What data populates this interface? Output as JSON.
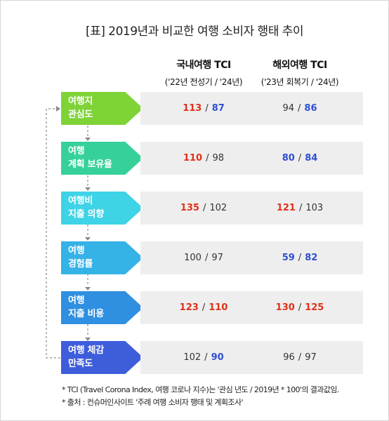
{
  "title": "[표] 2019년과 비교한 여행 소비자 행태 추이",
  "columns": [
    {
      "heading": "국내여행 TCI",
      "sub": "('22년 전성기 / '24년)"
    },
    {
      "heading": "해외여행 TCI",
      "sub": "('23년 회복기 / '24년)"
    }
  ],
  "rows": [
    {
      "line1": "여행지",
      "line2": "관심도",
      "color": "#7ed337",
      "domestic": {
        "a": "113",
        "b": "87",
        "a_style": "red",
        "b_style": "blue"
      },
      "overseas": {
        "a": "94",
        "b": "86",
        "a_style": "plain",
        "b_style": "blue"
      }
    },
    {
      "line1": "여행",
      "line2": "계획 보유율",
      "color": "#36d199",
      "domestic": {
        "a": "110",
        "b": "98",
        "a_style": "red",
        "b_style": "plain"
      },
      "overseas": {
        "a": "80",
        "b": "84",
        "a_style": "blue",
        "b_style": "blue"
      }
    },
    {
      "line1": "여행비",
      "line2": "지출 의향",
      "color": "#3ed3e6",
      "domestic": {
        "a": "135",
        "b": "102",
        "a_style": "red",
        "b_style": "plain"
      },
      "overseas": {
        "a": "121",
        "b": "103",
        "a_style": "red",
        "b_style": "plain"
      }
    },
    {
      "line1": "여행",
      "line2": "경험률",
      "color": "#35b2e6",
      "domestic": {
        "a": "100",
        "b": "97",
        "a_style": "plain",
        "b_style": "plain"
      },
      "overseas": {
        "a": "59",
        "b": "82",
        "a_style": "blue",
        "b_style": "blue"
      }
    },
    {
      "line1": "여행",
      "line2": "지출 비용",
      "color": "#2f8fe0",
      "domestic": {
        "a": "123",
        "b": "110",
        "a_style": "red",
        "b_style": "red"
      },
      "overseas": {
        "a": "130",
        "b": "125",
        "a_style": "red",
        "b_style": "red"
      }
    },
    {
      "line1": "여행 체감",
      "line2": "만족도",
      "color": "#3e5ddb",
      "domestic": {
        "a": "102",
        "b": "90",
        "a_style": "plain",
        "b_style": "blue"
      },
      "overseas": {
        "a": "96",
        "b": "97",
        "a_style": "plain",
        "b_style": "plain"
      }
    }
  ],
  "separator": "/",
  "notes": [
    "* TCI (Travel Corona Index, 여행 코로나 지수)는 '관심 년도 / 2019년 * 100'의 결과값임.",
    "* 출처 : 컨슈머인사이트 '주례 여행 소비자 행태 및 계획조사'"
  ]
}
